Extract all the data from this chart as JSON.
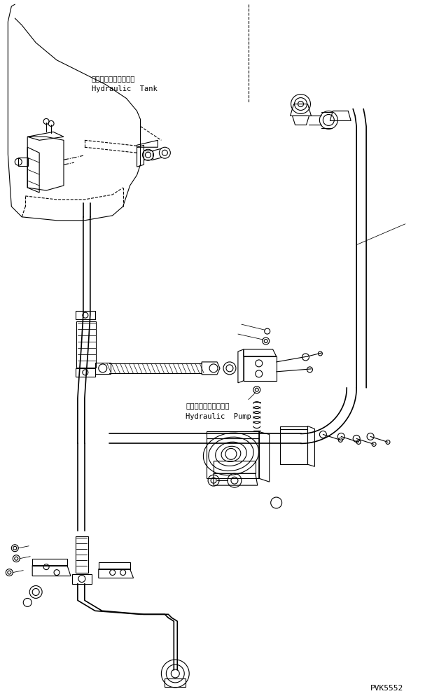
{
  "background_color": "#ffffff",
  "line_color": "#000000",
  "line_width": 0.8,
  "fig_width": 6.37,
  "fig_height": 9.95,
  "dpi": 100,
  "watermark": "PVK5552",
  "label_hydraulic_tank_jp": "ハイドロリックタンク",
  "label_hydraulic_tank_en": "Hydraulic  Tank",
  "label_hydraulic_pump_jp": "ハイドロリックポンプ",
  "label_hydraulic_pump_en": "Hydraulic  Pump"
}
